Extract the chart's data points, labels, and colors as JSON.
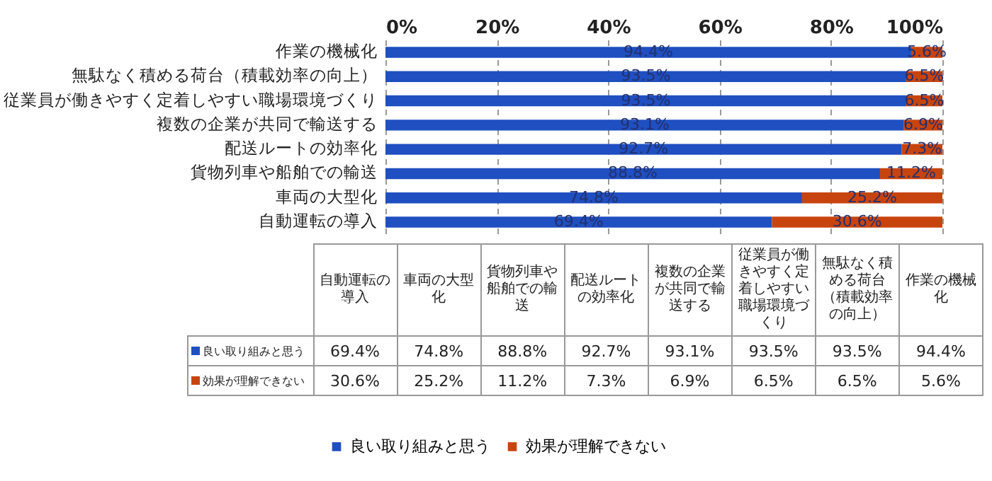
{
  "chart_data": {
    "type": "bar",
    "orientation": "horizontal",
    "stacked": true,
    "categories": [
      "作業の機械化",
      "無駄なく積める荷台（積載効率の向上）",
      "従業員が働きやすく定着しやすい職場環境づくり",
      "複数の企業が共同で輸送する",
      "配送ルートの効率化",
      "貨物列車や船舶での輸送",
      "車両の大型化",
      "自動運転の導入"
    ],
    "series": [
      {
        "name": "良い取り組みと思う",
        "color": "#1f4fc0",
        "values": [
          94.4,
          93.5,
          93.5,
          93.1,
          92.7,
          88.8,
          74.8,
          69.4
        ],
        "value_labels": [
          "94.4%",
          "93.5%",
          "93.5%",
          "93.1%",
          "92.7%",
          "88.8%",
          "74.8%",
          "69.4%"
        ]
      },
      {
        "name": "効果が理解できない",
        "color": "#c8440f",
        "values": [
          5.6,
          6.5,
          6.5,
          6.9,
          7.3,
          11.2,
          25.2,
          30.6
        ],
        "value_labels": [
          "5.6%",
          "6.5%",
          "6.5%",
          "6.9%",
          "7.3%",
          "11.2%",
          "25.2%",
          "30.6%"
        ]
      }
    ],
    "xlim": [
      0,
      100
    ],
    "xticks": [
      {
        "value": 0,
        "label": "0%"
      },
      {
        "value": 20,
        "label": "20%"
      },
      {
        "value": 40,
        "label": "40%"
      },
      {
        "value": 60,
        "label": "60%"
      },
      {
        "value": 80,
        "label": "80%"
      },
      {
        "value": 100,
        "label": "100%"
      }
    ],
    "grid": "x",
    "legend": "bottom"
  }
}
